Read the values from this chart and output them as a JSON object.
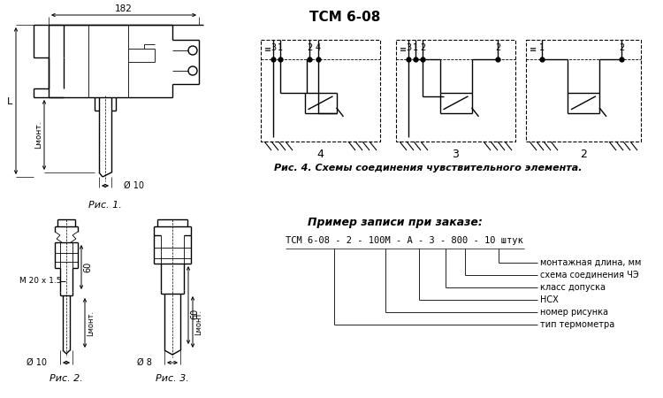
{
  "title": "ТСМ 6-08",
  "fig4_caption": "Рис. 4. Схемы соединения чувствительного элемента.",
  "ris1_caption": "Рис. 1.",
  "ris2_caption": "Рис. 2.",
  "ris3_caption": "Рис. 3.",
  "order_title": "Пример записи при заказе:",
  "order_example": "ТСМ 6-08 - 2 - 100М - А - 3 - 800 - 10 штук",
  "order_notes": [
    "монтажная длина, мм",
    "схема соединения ЧЭ",
    "класс допуска",
    "НСХ",
    "номер рисунка",
    "тип термометра"
  ],
  "dim_182": "182",
  "dim_L": "L",
  "dim_Lmont": "Lмонт.",
  "dim_d10": "Ø 10",
  "dim_60_2": "60",
  "dim_M20": "M 20 x 1.5",
  "dim_d10_2": "Ø 10",
  "dim_60_3": "60",
  "dim_d8": "Ø 8",
  "scheme_labels": [
    "4",
    "3",
    "2"
  ],
  "bg_color": "#ffffff"
}
